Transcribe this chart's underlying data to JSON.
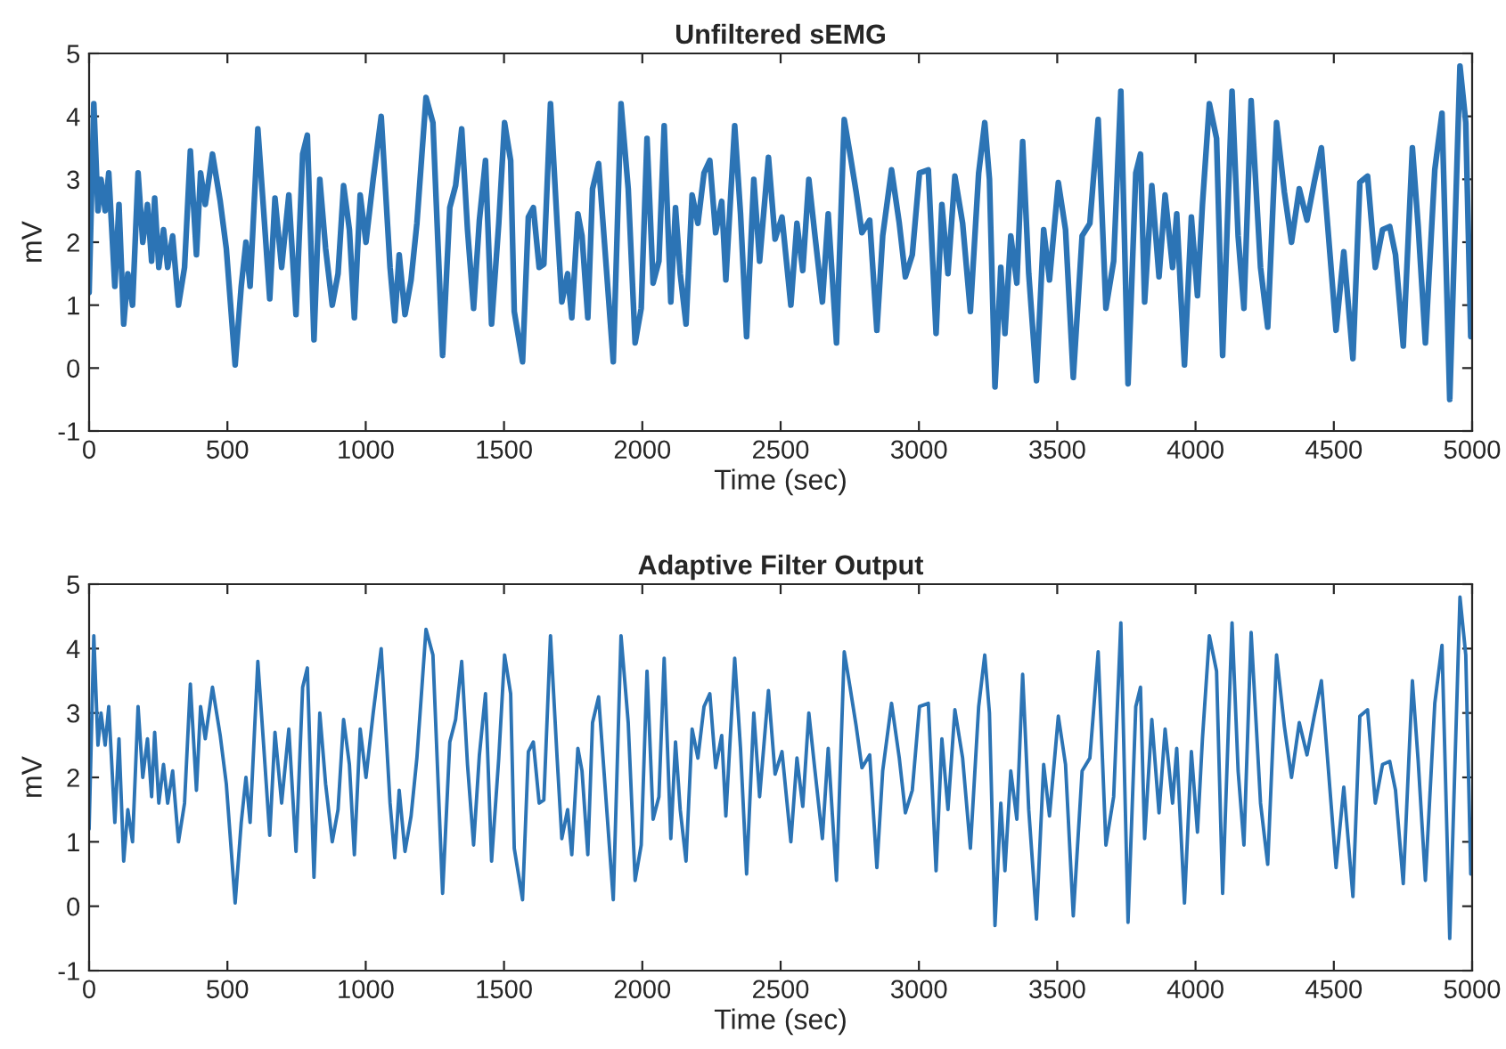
{
  "chart_data": [
    {
      "type": "line",
      "title": "Unfiltered sEMG",
      "xlabel": "Time (sec)",
      "ylabel": "mV",
      "xlim": [
        0,
        5000
      ],
      "ylim": [
        -1,
        5
      ],
      "xticks": [
        0,
        500,
        1000,
        1500,
        2000,
        2500,
        3000,
        3500,
        4000,
        4500,
        5000
      ],
      "yticks": [
        -1,
        0,
        1,
        2,
        3,
        4,
        5
      ],
      "grid": false,
      "legend": false,
      "marker": "none",
      "line_style": "solid",
      "x": [
        0,
        17,
        32,
        43,
        58,
        71,
        93,
        108,
        125,
        140,
        157,
        177,
        194,
        211,
        226,
        237,
        252,
        269,
        284,
        302,
        323,
        345,
        366,
        388,
        403,
        420,
        446,
        474,
        496,
        528,
        550,
        567,
        582,
        610,
        631,
        653,
        672,
        696,
        722,
        748,
        772,
        789,
        813,
        834,
        855,
        879,
        900,
        920,
        941,
        959,
        980,
        1001,
        1027,
        1056,
        1088,
        1105,
        1121,
        1142,
        1164,
        1185,
        1218,
        1243,
        1278,
        1304,
        1325,
        1347,
        1368,
        1390,
        1411,
        1433,
        1455,
        1481,
        1502,
        1524,
        1537,
        1567,
        1588,
        1606,
        1627,
        1644,
        1668,
        1692,
        1709,
        1730,
        1745,
        1767,
        1782,
        1803,
        1820,
        1842,
        1863,
        1895,
        1923,
        1949,
        1974,
        1996,
        2017,
        2039,
        2060,
        2079,
        2103,
        2120,
        2137,
        2158,
        2180,
        2201,
        2223,
        2244,
        2265,
        2287,
        2302,
        2334,
        2355,
        2377,
        2403,
        2424,
        2456,
        2480,
        2505,
        2537,
        2559,
        2580,
        2602,
        2623,
        2651,
        2672,
        2702,
        2730,
        2751,
        2773,
        2794,
        2822,
        2848,
        2869,
        2901,
        2929,
        2951,
        2976,
        3002,
        3034,
        3062,
        3083,
        3105,
        3130,
        3158,
        3186,
        3216,
        3238,
        3255,
        3275,
        3296,
        3311,
        3332,
        3354,
        3375,
        3397,
        3425,
        3451,
        3472,
        3504,
        3530,
        3558,
        3590,
        3618,
        3648,
        3676,
        3704,
        3730,
        3756,
        3784,
        3801,
        3816,
        3842,
        3868,
        3890,
        3917,
        3932,
        3960,
        3985,
        4007,
        4025,
        4050,
        4076,
        4098,
        4132,
        4154,
        4175,
        4201,
        4235,
        4261,
        4293,
        4321,
        4347,
        4375,
        4403,
        4429,
        4455,
        4478,
        4508,
        4536,
        4569,
        4594,
        4622,
        4650,
        4676,
        4702,
        4723,
        4751,
        4784,
        4805,
        4831,
        4865,
        4891,
        4919,
        4956,
        4977,
        4995,
        5000
      ],
      "series": [
        {
          "color": "#2c74b5",
          "values": [
            1.2,
            4.2,
            2.5,
            3.0,
            2.5,
            3.1,
            1.3,
            2.6,
            0.7,
            1.5,
            1.0,
            3.1,
            2.0,
            2.6,
            1.7,
            2.7,
            1.6,
            2.2,
            1.6,
            2.1,
            1.0,
            1.6,
            3.45,
            1.8,
            3.1,
            2.6,
            3.4,
            2.65,
            1.9,
            0.05,
            1.3,
            2.0,
            1.3,
            3.8,
            2.5,
            1.1,
            2.7,
            1.6,
            2.75,
            0.85,
            3.4,
            3.7,
            0.45,
            3.0,
            1.9,
            1.0,
            1.5,
            2.9,
            2.2,
            0.8,
            2.75,
            2.0,
            3.0,
            4.0,
            1.6,
            0.75,
            1.8,
            0.85,
            1.4,
            2.3,
            4.3,
            3.9,
            0.2,
            2.55,
            2.9,
            3.8,
            2.2,
            0.95,
            2.35,
            3.3,
            0.7,
            2.3,
            3.9,
            3.3,
            0.9,
            0.1,
            2.4,
            2.55,
            1.6,
            1.65,
            4.2,
            2.3,
            1.05,
            1.5,
            0.8,
            2.45,
            2.1,
            0.8,
            2.85,
            3.25,
            2.0,
            0.1,
            4.2,
            2.85,
            0.4,
            0.95,
            3.65,
            1.35,
            1.7,
            3.85,
            1.05,
            2.55,
            1.5,
            0.7,
            2.75,
            2.3,
            3.1,
            3.3,
            2.15,
            2.65,
            1.4,
            3.85,
            2.45,
            0.5,
            3.0,
            1.7,
            3.35,
            2.05,
            2.4,
            1.0,
            2.3,
            1.55,
            3.0,
            2.15,
            1.05,
            2.45,
            0.4,
            3.95,
            3.4,
            2.8,
            2.15,
            2.35,
            0.6,
            2.1,
            3.15,
            2.3,
            1.45,
            1.8,
            3.1,
            3.15,
            0.55,
            2.6,
            1.5,
            3.05,
            2.3,
            0.9,
            3.1,
            3.9,
            3.0,
            -0.3,
            1.6,
            0.55,
            2.1,
            1.35,
            3.6,
            1.5,
            -0.2,
            2.2,
            1.4,
            2.95,
            2.2,
            -0.15,
            2.1,
            2.3,
            3.95,
            0.95,
            1.7,
            4.4,
            -0.25,
            3.1,
            3.4,
            1.05,
            2.9,
            1.45,
            2.75,
            1.6,
            2.45,
            0.05,
            2.4,
            1.15,
            2.6,
            4.2,
            3.65,
            0.2,
            4.4,
            2.1,
            0.95,
            4.25,
            1.6,
            0.65,
            3.9,
            2.8,
            2.0,
            2.85,
            2.35,
            2.95,
            3.5,
            2.25,
            0.6,
            1.85,
            0.15,
            2.95,
            3.05,
            1.6,
            2.2,
            2.25,
            1.8,
            0.35,
            3.5,
            2.25,
            0.4,
            3.15,
            4.05,
            -0.5,
            4.8,
            3.9,
            0.5,
            1.35
          ]
        }
      ]
    },
    {
      "type": "line",
      "title": "Adaptive Filter Output",
      "xlabel": "Time (sec)",
      "ylabel": "mV",
      "xlim": [
        0,
        5000
      ],
      "ylim": [
        -1,
        5
      ],
      "xticks": [
        0,
        500,
        1000,
        1500,
        2000,
        2500,
        3000,
        3500,
        4000,
        4500,
        5000
      ],
      "yticks": [
        -1,
        0,
        1,
        2,
        3,
        4,
        5
      ],
      "grid": false,
      "legend": false,
      "marker": "none",
      "line_style": "solid",
      "x": [
        0,
        17,
        32,
        43,
        58,
        71,
        93,
        108,
        125,
        140,
        157,
        177,
        194,
        211,
        226,
        237,
        252,
        269,
        284,
        302,
        323,
        345,
        366,
        388,
        403,
        420,
        446,
        474,
        496,
        528,
        550,
        567,
        582,
        610,
        631,
        653,
        672,
        696,
        722,
        748,
        772,
        789,
        813,
        834,
        855,
        879,
        900,
        920,
        941,
        959,
        980,
        1001,
        1027,
        1056,
        1088,
        1105,
        1121,
        1142,
        1164,
        1185,
        1218,
        1243,
        1278,
        1304,
        1325,
        1347,
        1368,
        1390,
        1411,
        1433,
        1455,
        1481,
        1502,
        1524,
        1537,
        1567,
        1588,
        1606,
        1627,
        1644,
        1668,
        1692,
        1709,
        1730,
        1745,
        1767,
        1782,
        1803,
        1820,
        1842,
        1863,
        1895,
        1923,
        1949,
        1974,
        1996,
        2017,
        2039,
        2060,
        2079,
        2103,
        2120,
        2137,
        2158,
        2180,
        2201,
        2223,
        2244,
        2265,
        2287,
        2302,
        2334,
        2355,
        2377,
        2403,
        2424,
        2456,
        2480,
        2505,
        2537,
        2559,
        2580,
        2602,
        2623,
        2651,
        2672,
        2702,
        2730,
        2751,
        2773,
        2794,
        2822,
        2848,
        2869,
        2901,
        2929,
        2951,
        2976,
        3002,
        3034,
        3062,
        3083,
        3105,
        3130,
        3158,
        3186,
        3216,
        3238,
        3255,
        3275,
        3296,
        3311,
        3332,
        3354,
        3375,
        3397,
        3425,
        3451,
        3472,
        3504,
        3530,
        3558,
        3590,
        3618,
        3648,
        3676,
        3704,
        3730,
        3756,
        3784,
        3801,
        3816,
        3842,
        3868,
        3890,
        3917,
        3932,
        3960,
        3985,
        4007,
        4025,
        4050,
        4076,
        4098,
        4132,
        4154,
        4175,
        4201,
        4235,
        4261,
        4293,
        4321,
        4347,
        4375,
        4403,
        4429,
        4455,
        4478,
        4508,
        4536,
        4569,
        4594,
        4622,
        4650,
        4676,
        4702,
        4723,
        4751,
        4784,
        4805,
        4831,
        4865,
        4891,
        4919,
        4956,
        4977,
        4995,
        5000
      ],
      "series": [
        {
          "color": "#2c74b5",
          "values": [
            1.2,
            4.2,
            2.5,
            3.0,
            2.5,
            3.1,
            1.3,
            2.6,
            0.7,
            1.5,
            1.0,
            3.1,
            2.0,
            2.6,
            1.7,
            2.7,
            1.6,
            2.2,
            1.6,
            2.1,
            1.0,
            1.6,
            3.45,
            1.8,
            3.1,
            2.6,
            3.4,
            2.65,
            1.9,
            0.05,
            1.3,
            2.0,
            1.3,
            3.8,
            2.5,
            1.1,
            2.7,
            1.6,
            2.75,
            0.85,
            3.4,
            3.7,
            0.45,
            3.0,
            1.9,
            1.0,
            1.5,
            2.9,
            2.2,
            0.8,
            2.75,
            2.0,
            3.0,
            4.0,
            1.6,
            0.75,
            1.8,
            0.85,
            1.4,
            2.3,
            4.3,
            3.9,
            0.2,
            2.55,
            2.9,
            3.8,
            2.2,
            0.95,
            2.35,
            3.3,
            0.7,
            2.3,
            3.9,
            3.3,
            0.9,
            0.1,
            2.4,
            2.55,
            1.6,
            1.65,
            4.2,
            2.3,
            1.05,
            1.5,
            0.8,
            2.45,
            2.1,
            0.8,
            2.85,
            3.25,
            2.0,
            0.1,
            4.2,
            2.85,
            0.4,
            0.95,
            3.65,
            1.35,
            1.7,
            3.85,
            1.05,
            2.55,
            1.5,
            0.7,
            2.75,
            2.3,
            3.1,
            3.3,
            2.15,
            2.65,
            1.4,
            3.85,
            2.45,
            0.5,
            3.0,
            1.7,
            3.35,
            2.05,
            2.4,
            1.0,
            2.3,
            1.55,
            3.0,
            2.15,
            1.05,
            2.45,
            0.4,
            3.95,
            3.4,
            2.8,
            2.15,
            2.35,
            0.6,
            2.1,
            3.15,
            2.3,
            1.45,
            1.8,
            3.1,
            3.15,
            0.55,
            2.6,
            1.5,
            3.05,
            2.3,
            0.9,
            3.1,
            3.9,
            3.0,
            -0.3,
            1.6,
            0.55,
            2.1,
            1.35,
            3.6,
            1.5,
            -0.2,
            2.2,
            1.4,
            2.95,
            2.2,
            -0.15,
            2.1,
            2.3,
            3.95,
            0.95,
            1.7,
            4.4,
            -0.25,
            3.1,
            3.4,
            1.05,
            2.9,
            1.45,
            2.75,
            1.6,
            2.45,
            0.05,
            2.4,
            1.15,
            2.6,
            4.2,
            3.65,
            0.2,
            4.4,
            2.1,
            0.95,
            4.25,
            1.6,
            0.65,
            3.9,
            2.8,
            2.0,
            2.85,
            2.35,
            2.95,
            3.5,
            2.25,
            0.6,
            1.85,
            0.15,
            2.95,
            3.05,
            1.6,
            2.2,
            2.25,
            1.8,
            0.35,
            3.5,
            2.25,
            0.4,
            3.15,
            4.05,
            -0.5,
            4.8,
            3.9,
            0.5,
            1.35
          ]
        }
      ]
    }
  ]
}
